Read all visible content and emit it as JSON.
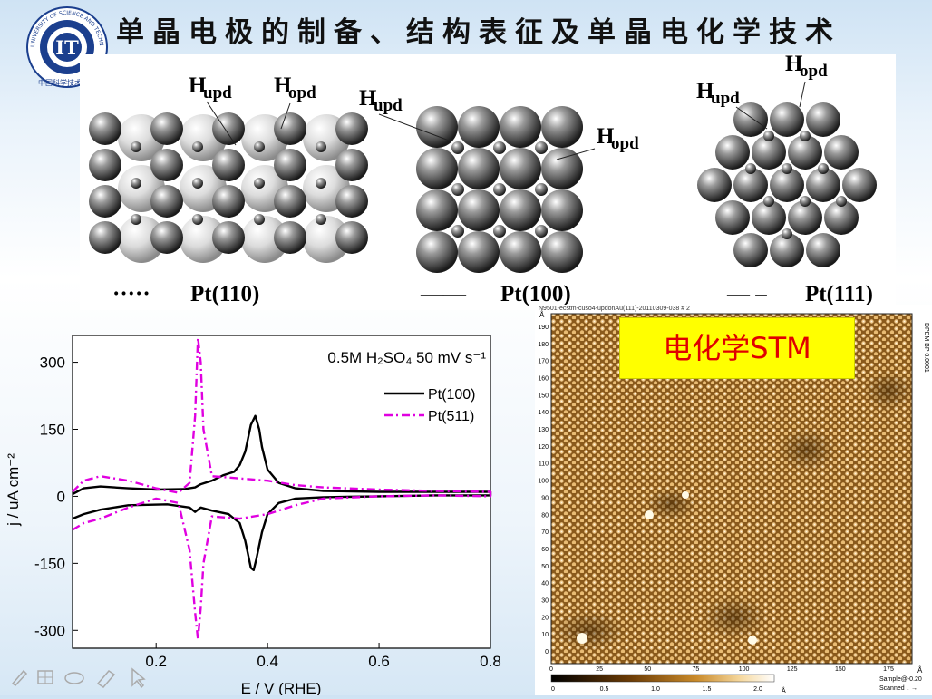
{
  "slide": {
    "title": "单晶电极的制备、结构表征及单晶电化学技术",
    "logo": {
      "arc_text": "UNIVERSITY OF SCIENCE AND TECHNOLOGY OF CHINA",
      "chinese": "中国科学技术大学",
      "mark": "IT"
    }
  },
  "structures": [
    {
      "label": "Pt(110)",
      "line_style": "·····",
      "h_upd": "H",
      "h_upd_sub": "upd",
      "h_opd": "H",
      "h_opd_sub": "opd"
    },
    {
      "label": "Pt(100)",
      "line_style": "——",
      "h_upd": "H",
      "h_upd_sub": "upd",
      "h_opd": "H",
      "h_opd_sub": "opd"
    },
    {
      "label": "Pt(111)",
      "line_style": "— –",
      "h_upd": "H",
      "h_upd_sub": "upd",
      "h_opd": "H",
      "h_opd_sub": "opd"
    }
  ],
  "chart_data": {
    "type": "line",
    "xlabel": "E / V (RHE)",
    "ylabel": "j / uA cm⁻²",
    "xlim": [
      0.05,
      0.8
    ],
    "ylim": [
      -340,
      360
    ],
    "xticks": [
      "0.2",
      "0.4",
      "0.6",
      "0.8"
    ],
    "yticks": [
      "300",
      "150",
      "0",
      "-150",
      "-300"
    ],
    "annotation": "0.5M H₂SO₄ 50 mV s⁻¹",
    "legend_placement": "top-right",
    "series": [
      {
        "name": "Pt(100)",
        "color": "#000000",
        "dash": "solid",
        "anodic": [
          [
            0.05,
            5
          ],
          [
            0.07,
            18
          ],
          [
            0.1,
            22
          ],
          [
            0.15,
            18
          ],
          [
            0.2,
            15
          ],
          [
            0.25,
            16
          ],
          [
            0.27,
            20
          ],
          [
            0.28,
            27
          ],
          [
            0.3,
            35
          ],
          [
            0.32,
            47
          ],
          [
            0.34,
            55
          ],
          [
            0.35,
            70
          ],
          [
            0.36,
            100
          ],
          [
            0.37,
            160
          ],
          [
            0.378,
            180
          ],
          [
            0.385,
            150
          ],
          [
            0.39,
            110
          ],
          [
            0.4,
            60
          ],
          [
            0.42,
            30
          ],
          [
            0.45,
            18
          ],
          [
            0.5,
            12
          ],
          [
            0.6,
            10
          ],
          [
            0.7,
            10
          ],
          [
            0.8,
            10
          ]
        ],
        "cathodic": [
          [
            0.8,
            2
          ],
          [
            0.7,
            2
          ],
          [
            0.6,
            0
          ],
          [
            0.5,
            -2
          ],
          [
            0.45,
            -5
          ],
          [
            0.42,
            -15
          ],
          [
            0.4,
            -40
          ],
          [
            0.39,
            -80
          ],
          [
            0.38,
            -140
          ],
          [
            0.375,
            -165
          ],
          [
            0.37,
            -160
          ],
          [
            0.36,
            -100
          ],
          [
            0.35,
            -60
          ],
          [
            0.33,
            -40
          ],
          [
            0.3,
            -32
          ],
          [
            0.28,
            -25
          ],
          [
            0.27,
            -35
          ],
          [
            0.26,
            -25
          ],
          [
            0.22,
            -18
          ],
          [
            0.15,
            -20
          ],
          [
            0.1,
            -30
          ],
          [
            0.07,
            -40
          ],
          [
            0.05,
            -50
          ]
        ]
      },
      {
        "name": "Pt(511)",
        "color": "#e000e0",
        "dash": "dashdot",
        "anodic": [
          [
            0.05,
            10
          ],
          [
            0.07,
            35
          ],
          [
            0.1,
            45
          ],
          [
            0.15,
            35
          ],
          [
            0.2,
            18
          ],
          [
            0.24,
            8
          ],
          [
            0.26,
            30
          ],
          [
            0.27,
            180
          ],
          [
            0.275,
            355
          ],
          [
            0.28,
            300
          ],
          [
            0.285,
            150
          ],
          [
            0.3,
            45
          ],
          [
            0.35,
            40
          ],
          [
            0.4,
            35
          ],
          [
            0.45,
            25
          ],
          [
            0.5,
            20
          ],
          [
            0.6,
            15
          ],
          [
            0.7,
            12
          ],
          [
            0.8,
            10
          ]
        ],
        "cathodic": [
          [
            0.8,
            0
          ],
          [
            0.7,
            2
          ],
          [
            0.6,
            0
          ],
          [
            0.5,
            -5
          ],
          [
            0.45,
            -20
          ],
          [
            0.4,
            -40
          ],
          [
            0.35,
            -50
          ],
          [
            0.3,
            -45
          ],
          [
            0.285,
            -150
          ],
          [
            0.28,
            -250
          ],
          [
            0.275,
            -320
          ],
          [
            0.27,
            -260
          ],
          [
            0.26,
            -120
          ],
          [
            0.24,
            -15
          ],
          [
            0.2,
            -5
          ],
          [
            0.15,
            -25
          ],
          [
            0.1,
            -50
          ],
          [
            0.07,
            -60
          ],
          [
            0.05,
            -75
          ]
        ]
      }
    ]
  },
  "stm": {
    "caption": "电化学STM",
    "file_title": "N9501-ecstm-cuso4-updonAu(111)-20110309-038 # 2",
    "y_ticks": [
      "190",
      "180",
      "170",
      "160",
      "150",
      "140",
      "130",
      "120",
      "110",
      "100",
      "90",
      "80",
      "70",
      "60",
      "50",
      "40",
      "30",
      "20",
      "10",
      "0"
    ],
    "x_ticks": [
      "0",
      "25",
      "50",
      "75",
      "100",
      "125",
      "150",
      "175"
    ],
    "x_unit": "Å",
    "y_unit": "Å",
    "colorbar_ticks": [
      "0",
      "0.5",
      "1.0",
      "1.5",
      "2.0"
    ],
    "colorbar_unit": "Å",
    "side_text": "DPBM BP 0.0001",
    "sample_text": "Sample@-0.20",
    "scanned_text": "Scanned ↓ →"
  },
  "toolbar": {
    "icons": [
      "pen-icon",
      "slide-grid-icon",
      "eraser-icon",
      "highlighter-icon",
      "pointer-icon"
    ]
  }
}
